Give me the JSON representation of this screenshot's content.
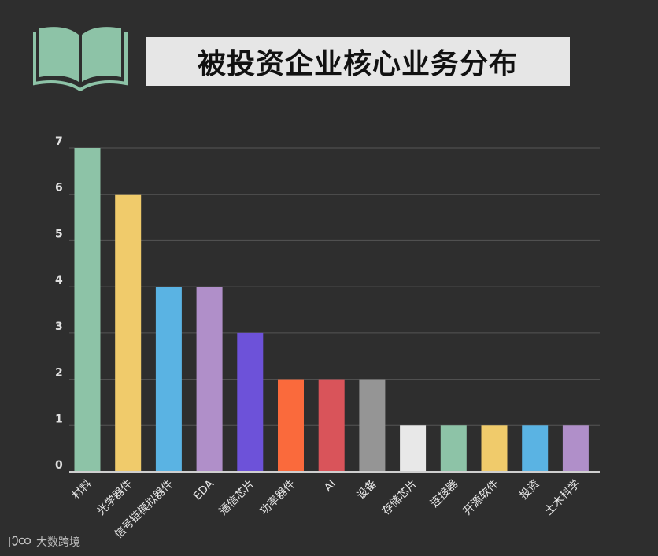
{
  "title": "被投资企业核心业务分布",
  "watermark": {
    "text": "大数跨境"
  },
  "colors": {
    "background": "#2e2e2e",
    "title_box": "#e6e6e6",
    "logo": "#8dc3a7",
    "grid": "#555555",
    "axis": "#cfcfcf"
  },
  "chart_data": {
    "type": "bar",
    "categories": [
      "材料",
      "光学器件",
      "信号链模拟器件",
      "EDA",
      "通信芯片",
      "功率器件",
      "AI",
      "设备",
      "存储芯片",
      "连接器",
      "开源软件",
      "投资",
      "土木科学"
    ],
    "values": [
      7,
      6,
      4,
      4,
      3,
      2,
      2,
      2,
      1,
      1,
      1,
      1,
      1
    ],
    "bar_colors": [
      "#8dc3a7",
      "#f0cb6b",
      "#5ab3e3",
      "#b08fc9",
      "#6d52d9",
      "#fa6a3c",
      "#d9545a",
      "#959595",
      "#e8e8e8",
      "#8dc3a7",
      "#f0cb6b",
      "#5ab3e3",
      "#b08fc9"
    ],
    "yticks": [
      0,
      1,
      2,
      3,
      4,
      5,
      6,
      7
    ],
    "ylim": [
      0,
      7
    ],
    "grid": true,
    "legend": "none"
  }
}
